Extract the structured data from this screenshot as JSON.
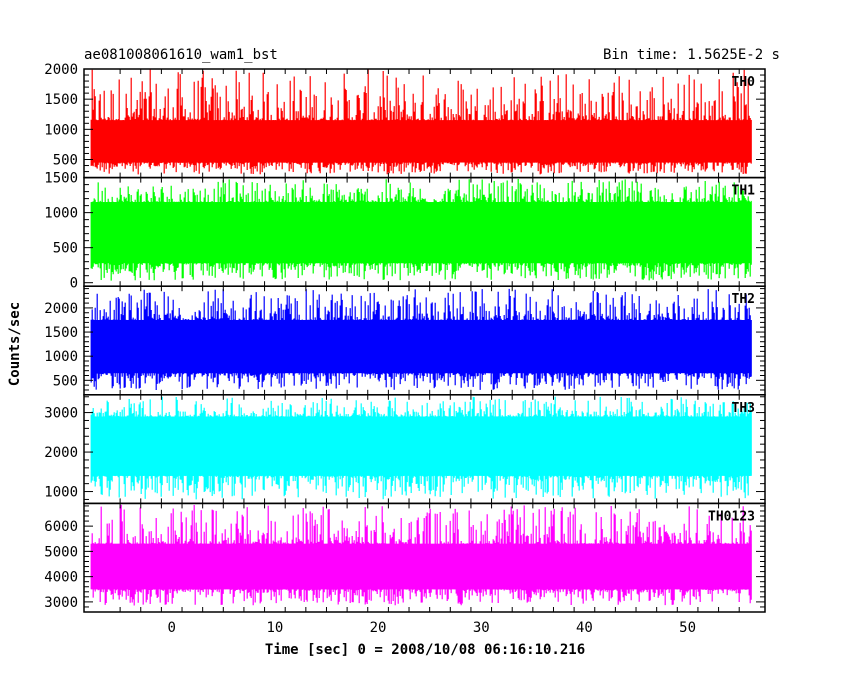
{
  "header": {
    "title": "ae081008061610_wam1_bst",
    "bin_time": "Bin time: 1.5625E-2 s"
  },
  "chart_data": {
    "type": "line",
    "layout": "stacked-panels",
    "xlabel": "Time [sec] 0 = 2008/10/08 06:16:10.216",
    "ylabel": "Counts/sec",
    "xlim": [
      -8.5,
      57.5
    ],
    "data_x_range": [
      -7.8,
      56.2
    ],
    "x_ticks": [
      0,
      10,
      20,
      30,
      40,
      50
    ],
    "grid": false,
    "panels": [
      {
        "label": "TH0",
        "color": "#ff0000",
        "ylim": [
          200,
          2000
        ],
        "y_ticks": [
          500,
          1000,
          1500,
          2000
        ],
        "typical_range": [
          450,
          1150
        ],
        "min": 250,
        "max": 2000
      },
      {
        "label": "TH1",
        "color": "#00ff00",
        "ylim": [
          -50,
          1500
        ],
        "y_ticks": [
          0,
          500,
          1000,
          1500
        ],
        "typical_range": [
          280,
          1150
        ],
        "min": 30,
        "max": 1480
      },
      {
        "label": "TH2",
        "color": "#0000ff",
        "ylim": [
          200,
          2450
        ],
        "y_ticks": [
          500,
          1000,
          1500,
          2000
        ],
        "typical_range": [
          650,
          1750
        ],
        "min": 300,
        "max": 2400
      },
      {
        "label": "TH3",
        "color": "#00ffff",
        "ylim": [
          700,
          3450
        ],
        "y_ticks": [
          1000,
          2000,
          3000
        ],
        "typical_range": [
          1400,
          2900
        ],
        "min": 800,
        "max": 3400
      },
      {
        "label": "TH0123",
        "color": "#ff00ff",
        "ylim": [
          2600,
          6900
        ],
        "y_ticks": [
          3000,
          4000,
          5000,
          6000
        ],
        "typical_range": [
          3500,
          5300
        ],
        "min": 2850,
        "max": 6850
      }
    ]
  }
}
